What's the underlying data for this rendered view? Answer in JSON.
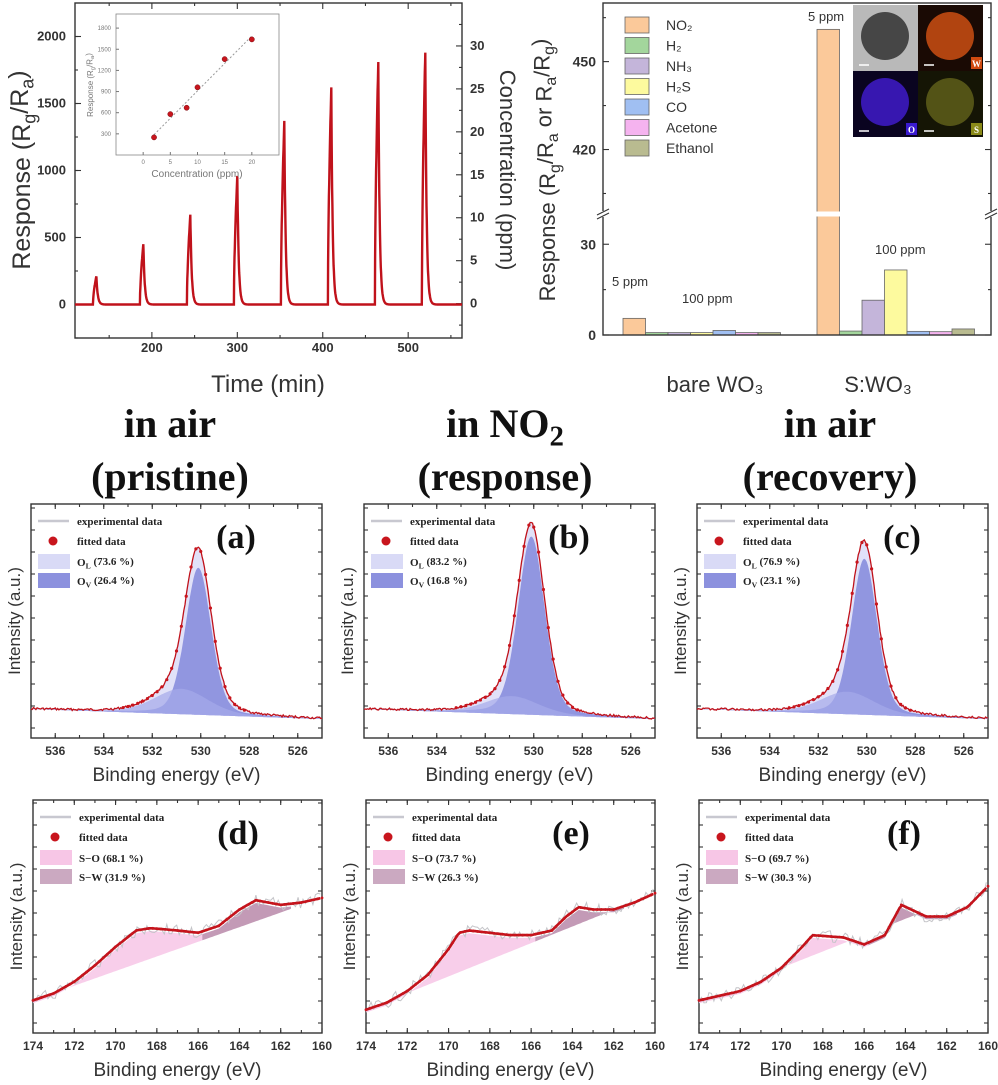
{
  "colors": {
    "response_line": "#c0121b",
    "axis": "#333333",
    "fit_dot": "#c8151d",
    "O_L_fill": "#d9daf6",
    "O_V_fill": "#8c91de",
    "S_O_fill": "#f7c6e6",
    "S_W_fill": "#a96f97"
  },
  "chart_data": [
    {
      "id": "response-transient",
      "type": "line",
      "xlabel": "Time (min)",
      "ylabel_parts": [
        "Response (R",
        "g",
        "/R",
        "a",
        ")"
      ],
      "y2label": "Concentration (ppm)",
      "xlim": [
        110,
        563
      ],
      "ylim": [
        -250,
        2250
      ],
      "y2lim": [
        -4,
        35
      ],
      "xticks": [
        "200",
        "300",
        "400",
        "500"
      ],
      "yticks": [
        "0",
        "500",
        "1000",
        "1500",
        "2000"
      ],
      "y2ticks": [
        "0",
        "5",
        "10",
        "15",
        "20",
        "25",
        "30"
      ],
      "pulses": [
        {
          "time": 135,
          "response": 210
        },
        {
          "time": 190,
          "response": 450
        },
        {
          "time": 245,
          "response": 670
        },
        {
          "time": 300,
          "response": 960
        },
        {
          "time": 355,
          "response": 1370
        },
        {
          "time": 410,
          "response": 1620
        },
        {
          "time": 465,
          "response": 1810
        },
        {
          "time": 520,
          "response": 1880
        }
      ]
    },
    {
      "id": "inset-calibration",
      "type": "scatter",
      "xlabel": "Concentration (ppm)",
      "ylabel_parts": [
        "Response (R",
        "g",
        "/R",
        "a",
        ")"
      ],
      "xlim": [
        -5,
        25
      ],
      "ylim": [
        0,
        2000
      ],
      "xticks": [
        "0",
        "5",
        "10",
        "15",
        "20"
      ],
      "yticks": [
        "300",
        "600",
        "900",
        "1200",
        "1500",
        "1800"
      ],
      "x": [
        2,
        5,
        8,
        10,
        15,
        20
      ],
      "y": [
        250,
        580,
        670,
        960,
        1360,
        1640
      ],
      "fit": "linear, dotted"
    },
    {
      "id": "selectivity",
      "type": "bar",
      "ylabel_parts": [
        "Response (R",
        "g",
        "/R",
        "a",
        " or R",
        "a",
        "/R",
        "g",
        ")"
      ],
      "y_broken": true,
      "ylim_lower": [
        0,
        40
      ],
      "ylim_upper": [
        398,
        470
      ],
      "yticks_lower": [
        "0",
        "30"
      ],
      "yticks_upper": [
        "420",
        "450"
      ],
      "legend_position": "top-left",
      "categories": [
        "bare WO₃",
        "S:WO₃"
      ],
      "series": [
        {
          "name": "NO₂",
          "color": "#fbc99a",
          "values": [
            5.5,
            461
          ]
        },
        {
          "name": "H₂",
          "color": "#a3d69c",
          "values": [
            0.8,
            1.3
          ]
        },
        {
          "name": "NH₃",
          "color": "#c4b5da",
          "values": [
            0.8,
            11.5
          ]
        },
        {
          "name": "H₂S",
          "color": "#fdfa9e",
          "values": [
            0.8,
            21.5
          ]
        },
        {
          "name": "CO",
          "color": "#a0bff2",
          "values": [
            1.5,
            1.2
          ]
        },
        {
          "name": "Acetone",
          "color": "#f5b3ef",
          "values": [
            0.8,
            1.1
          ]
        },
        {
          "name": "Ethanol",
          "color": "#b9bb90",
          "values": [
            0.8,
            2.0
          ]
        }
      ],
      "annotations": [
        "5 ppm",
        "100 ppm",
        "5 ppm",
        "100 ppm"
      ],
      "eds_labels": [
        "W",
        "O",
        "S"
      ]
    }
  ],
  "titles": [
    {
      "line1": [
        "in air"
      ],
      "line2": "(pristine)"
    },
    {
      "line1": [
        "in NO",
        "2"
      ],
      "line2": "(response)"
    },
    {
      "line1": [
        "in air"
      ],
      "line2": "(recovery)"
    }
  ],
  "xps_O1s": {
    "type": "line",
    "xlabel": "Binding energy (eV)",
    "ylabel": "Intensity (a.u.)",
    "xlim": [
      537,
      525
    ],
    "xticks": [
      "536",
      "534",
      "532",
      "530",
      "528",
      "526"
    ],
    "legend": {
      "experimental": "experimental data",
      "fitted": "fitted data"
    },
    "panels": [
      {
        "label": "(a)",
        "background": [
          0.13,
          0.085
        ],
        "peak_intensity": 0.66,
        "components": [
          {
            "symbol": "O",
            "sub": "L",
            "pct_text": " (73.6 %)",
            "pct": 73.6,
            "center": 530.1,
            "fwhm": 1.25
          },
          {
            "symbol": "O",
            "sub": "V",
            "pct_text": " (26.4 %)",
            "pct": 26.4,
            "center": 530.8,
            "fwhm": 2.6
          }
        ]
      },
      {
        "label": "(b)",
        "background": [
          0.13,
          0.085
        ],
        "peak_intensity": 0.8,
        "components": [
          {
            "symbol": "O",
            "sub": "L",
            "pct_text": " (83.2 %)",
            "pct": 83.2,
            "center": 530.1,
            "fwhm": 1.3
          },
          {
            "symbol": "O",
            "sub": "V",
            "pct_text": " (16.8 %)",
            "pct": 16.8,
            "center": 530.9,
            "fwhm": 2.6
          }
        ]
      },
      {
        "label": "(c)",
        "background": [
          0.13,
          0.085
        ],
        "peak_intensity": 0.7,
        "components": [
          {
            "symbol": "O",
            "sub": "L",
            "pct_text": " (76.9 %)",
            "pct": 76.9,
            "center": 530.1,
            "fwhm": 1.25
          },
          {
            "symbol": "O",
            "sub": "V",
            "pct_text": " (23.1 %)",
            "pct": 23.1,
            "center": 530.8,
            "fwhm": 2.6
          }
        ]
      }
    ]
  },
  "xps_S2p": {
    "type": "line",
    "xlabel": "Binding energy (eV)",
    "ylabel": "Intensity (a.u.)",
    "xlim": [
      174,
      160
    ],
    "xticks": [
      "174",
      "172",
      "170",
      "168",
      "166",
      "164",
      "162",
      "160"
    ],
    "legend": {
      "experimental": "experimental data",
      "fitted": "fitted data"
    },
    "panels": [
      {
        "label": "(d)",
        "components": [
          {
            "name": "S−O (68.1 %)"
          },
          {
            "name": "S−W (31.9 %)"
          }
        ],
        "fit_x": [
          174,
          173,
          172,
          171,
          170,
          169,
          168.3,
          167,
          166,
          165,
          164,
          163.2,
          162,
          161,
          160
        ],
        "fit_y": [
          0.14,
          0.17,
          0.22,
          0.29,
          0.37,
          0.44,
          0.45,
          0.44,
          0.43,
          0.46,
          0.53,
          0.57,
          0.55,
          0.56,
          0.58
        ]
      },
      {
        "label": "(e)",
        "components": [
          {
            "name": "S−O (73.7 %)"
          },
          {
            "name": "S−W (26.3 %)"
          }
        ],
        "fit_x": [
          174,
          173,
          172,
          171,
          170,
          169.5,
          169,
          168,
          167,
          166,
          165,
          164.3,
          163.7,
          163,
          162,
          161,
          160
        ],
        "fit_y": [
          0.1,
          0.13,
          0.18,
          0.25,
          0.36,
          0.43,
          0.44,
          0.43,
          0.42,
          0.42,
          0.44,
          0.5,
          0.54,
          0.53,
          0.53,
          0.56,
          0.6
        ]
      },
      {
        "label": "(f)",
        "components": [
          {
            "name": "S−O (69.7 %)"
          },
          {
            "name": "S−W (30.3 %)"
          }
        ],
        "fit_x": [
          174,
          173,
          172,
          171,
          170,
          169,
          168.5,
          167,
          166,
          165,
          164.2,
          163,
          162,
          161,
          160
        ],
        "fit_y": [
          0.14,
          0.16,
          0.18,
          0.22,
          0.28,
          0.37,
          0.42,
          0.41,
          0.38,
          0.42,
          0.55,
          0.5,
          0.5,
          0.54,
          0.63
        ]
      }
    ]
  }
}
